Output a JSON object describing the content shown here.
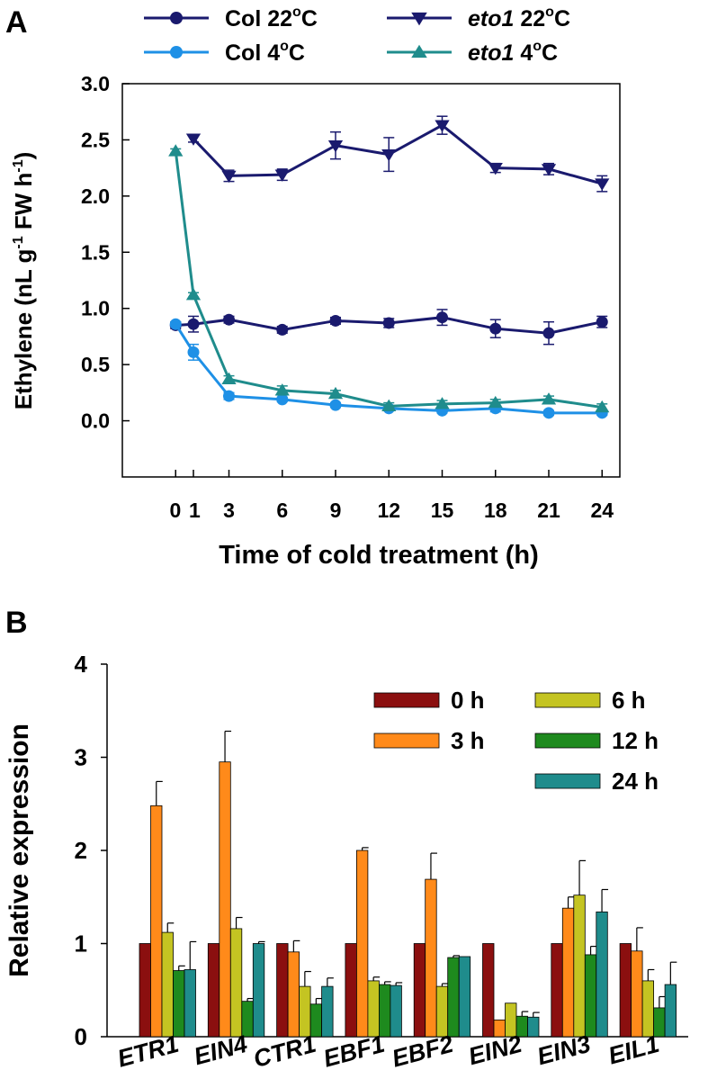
{
  "panels": {
    "a_label": "A",
    "b_label": "B"
  },
  "chart_data": [
    {
      "type": "line",
      "panel": "A",
      "xlabel": "Time of cold treatment (h)",
      "ylabel_parts": [
        "Ethylene (nL g",
        "-1",
        " FW h",
        "-1",
        ")"
      ],
      "ylim": [
        -0.5,
        3.0
      ],
      "yticks": [
        "3.0",
        "2.5",
        "2.0",
        "1.5",
        "1.0",
        "0.5",
        "0.0"
      ],
      "ytick_values": [
        3.0,
        2.5,
        2.0,
        1.5,
        1.0,
        0.5,
        0.0
      ],
      "xlim": [
        -3,
        25
      ],
      "xticks": [
        "0",
        "1",
        "3",
        "6",
        "9",
        "12",
        "15",
        "18",
        "21",
        "24"
      ],
      "xtick_values": [
        0,
        1,
        3,
        6,
        9,
        12,
        15,
        18,
        21,
        24
      ],
      "legend_placement": "top, above plot",
      "grid": false,
      "series": [
        {
          "name": "Col 22",
          "name_prefix": "Col ",
          "name_suffix": "22",
          "degree_unit": "C",
          "italic": false,
          "marker": "circle",
          "color": "#1a1a6e",
          "x": [
            0,
            1,
            3,
            6,
            9,
            12,
            15,
            18,
            21,
            24
          ],
          "y": [
            0.85,
            0.86,
            0.9,
            0.81,
            0.89,
            0.87,
            0.92,
            0.82,
            0.78,
            0.88
          ],
          "err": [
            0.03,
            0.07,
            0.03,
            0.03,
            0.03,
            0.04,
            0.07,
            0.08,
            0.1,
            0.05
          ]
        },
        {
          "name": "Col 4",
          "name_prefix": "Col ",
          "name_suffix": "4",
          "degree_unit": "C",
          "italic": false,
          "marker": "circle",
          "color": "#1e90e6",
          "x": [
            0,
            1,
            3,
            6,
            9,
            12,
            15,
            18,
            21,
            24
          ],
          "y": [
            0.86,
            0.61,
            0.22,
            0.19,
            0.14,
            0.11,
            0.09,
            0.11,
            0.07,
            0.07
          ],
          "err": [
            0.02,
            0.07,
            0.03,
            0.02,
            0.02,
            0.02,
            0.02,
            0.03,
            0.02,
            0.02
          ]
        },
        {
          "name": "eto1 22",
          "name_prefix": "eto1",
          "name_suffix": " 22",
          "degree_unit": "C",
          "italic": true,
          "marker": "triangle-down",
          "color": "#1a1a6e",
          "x": [
            1,
            3,
            6,
            9,
            12,
            15,
            18,
            21,
            24
          ],
          "y": [
            2.51,
            2.18,
            2.19,
            2.45,
            2.37,
            2.63,
            2.25,
            2.24,
            2.11
          ],
          "err": [
            0.03,
            0.05,
            0.05,
            0.12,
            0.15,
            0.08,
            0.04,
            0.05,
            0.07
          ]
        },
        {
          "name": "eto1 4",
          "name_prefix": "eto1",
          "name_suffix": " 4",
          "degree_unit": "C",
          "italic": true,
          "marker": "triangle-up",
          "color": "#1f8c8c",
          "x": [
            0,
            1,
            3,
            6,
            9,
            12,
            15,
            18,
            21,
            24
          ],
          "y": [
            2.4,
            1.12,
            0.37,
            0.27,
            0.24,
            0.13,
            0.15,
            0.16,
            0.19,
            0.12
          ],
          "err": [
            0.02,
            0.02,
            0.03,
            0.04,
            0.03,
            0.03,
            0.03,
            0.03,
            0.03,
            0.03
          ]
        }
      ]
    },
    {
      "type": "bar",
      "panel": "B",
      "ylabel": "Relative expression",
      "ylim": [
        0,
        4
      ],
      "yticks": [
        "4",
        "3",
        "2",
        "1",
        "0"
      ],
      "ytick_values": [
        4,
        3,
        2,
        1,
        0
      ],
      "categories": [
        "ETR1",
        "EIN4",
        "CTR1",
        "EBF1",
        "EBF2",
        "EIN2",
        "EIN3",
        "EIL1"
      ],
      "legend_placement": "top-right",
      "grid": false,
      "series": [
        {
          "name": "0 h",
          "color": "#8b0f0f",
          "values": [
            1.0,
            1.0,
            1.0,
            1.0,
            1.0,
            1.0,
            1.0,
            1.0
          ],
          "err": [
            0,
            0,
            0,
            0,
            0,
            0,
            0,
            0
          ]
        },
        {
          "name": "3 h",
          "color": "#ff8a1a",
          "values": [
            2.48,
            2.95,
            0.91,
            2.0,
            1.69,
            0.18,
            1.38,
            0.92
          ],
          "err": [
            0.26,
            0.33,
            0.12,
            0.03,
            0.28,
            0,
            0.12,
            0.25
          ]
        },
        {
          "name": "6 h",
          "color": "#c4c422",
          "values": [
            1.12,
            1.16,
            0.54,
            0.6,
            0.54,
            0.36,
            1.52,
            0.6
          ],
          "err": [
            0.1,
            0.12,
            0.16,
            0.04,
            0.03,
            0,
            0.37,
            0.12
          ]
        },
        {
          "name": "12 h",
          "color": "#1e8a1e",
          "values": [
            0.71,
            0.38,
            0.35,
            0.56,
            0.85,
            0.22,
            0.88,
            0.31
          ],
          "err": [
            0.05,
            0.03,
            0.06,
            0.03,
            0.02,
            0.05,
            0.09,
            0.12
          ]
        },
        {
          "name": "24 h",
          "color": "#1f8c8c",
          "values": [
            0.72,
            1.0,
            0.54,
            0.55,
            0.86,
            0.21,
            1.34,
            0.56
          ],
          "err": [
            0.3,
            0.02,
            0.09,
            0.03,
            0,
            0.05,
            0.24,
            0.24
          ]
        }
      ]
    }
  ]
}
